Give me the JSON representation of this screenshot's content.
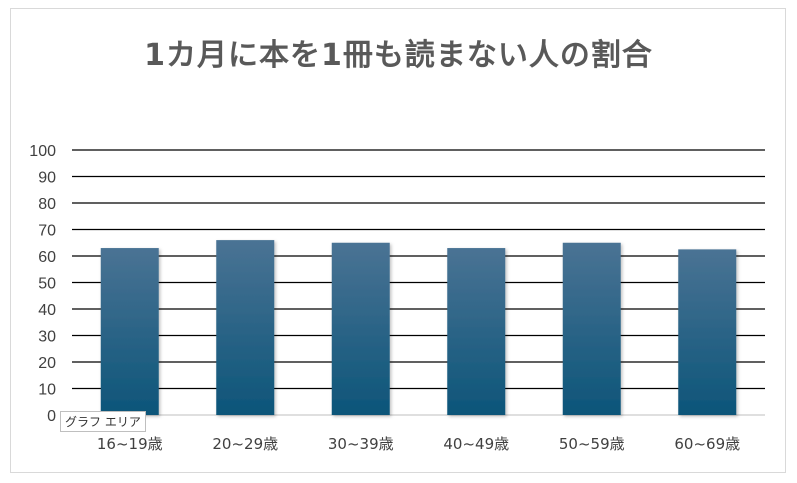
{
  "chart_data": {
    "type": "bar",
    "title": "1カ月に本を1冊も読まない人の割合",
    "categories": [
      "16~19歳",
      "20~29歳",
      "30~39歳",
      "40~49歳",
      "50~59歳",
      "60~69歳"
    ],
    "values": [
      63,
      66,
      65,
      63,
      65,
      62.5
    ],
    "ylim": [
      0,
      100
    ],
    "yticks": [
      0,
      10,
      20,
      30,
      40,
      50,
      60,
      70,
      80,
      90,
      100
    ],
    "grid": true,
    "legend": "none",
    "bar_color_top": "#4a7394",
    "bar_color_bottom": "#0c5579"
  },
  "tooltip": "グラフ エリア"
}
